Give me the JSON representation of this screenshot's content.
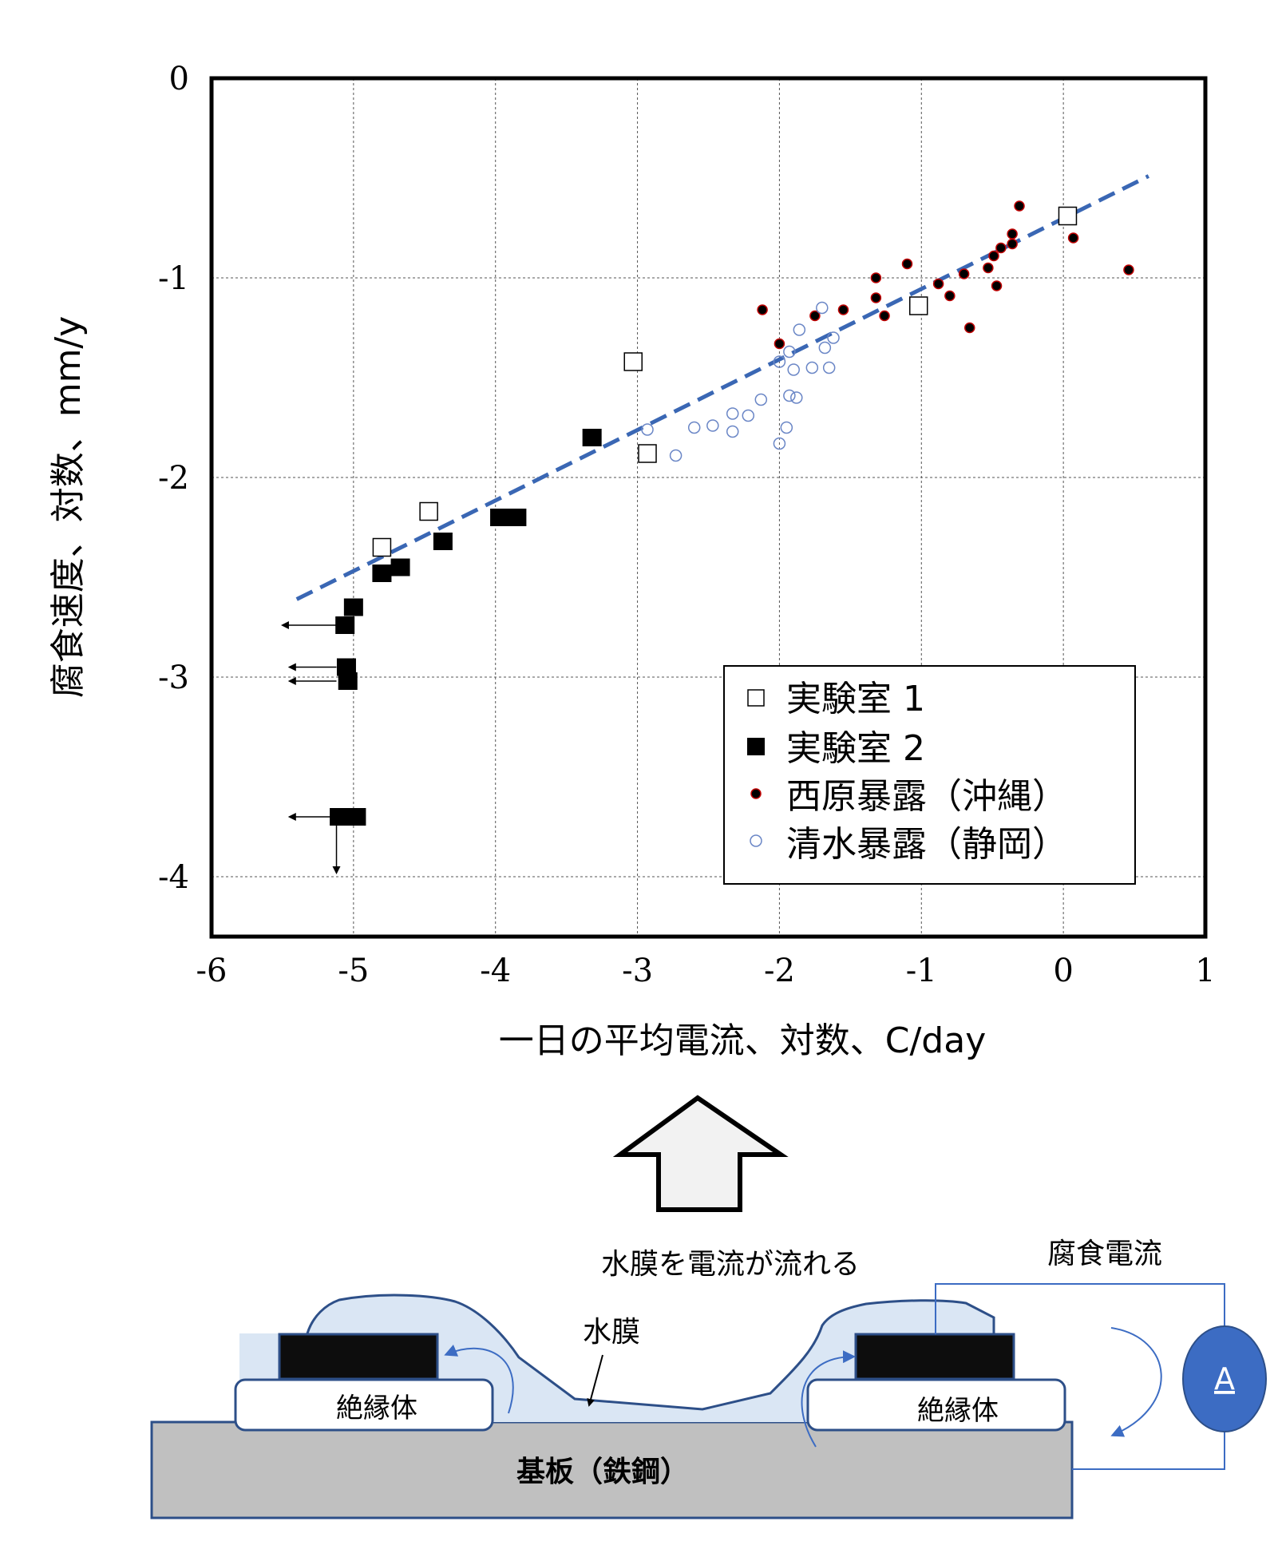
{
  "chart_data": {
    "type": "scatter",
    "xlabel": "一日の平均電流、対数、C/day",
    "ylabel": "腐食速度、対数、mm/y",
    "xlim": [
      -6,
      1
    ],
    "ylim": [
      -4.3,
      0
    ],
    "xticks": [
      "-6",
      "-5",
      "-4",
      "-3",
      "-2",
      "-1",
      "0",
      "1"
    ],
    "yticks": [
      "0",
      "-1",
      "-2",
      "-3",
      "-4"
    ],
    "grid": true,
    "legend_position": "lower-right",
    "trendline": {
      "x": [
        -5.4,
        0.6
      ],
      "y": [
        -2.61,
        -0.49
      ],
      "color": "#3a67b4"
    },
    "series": [
      {
        "name": "実験室 1",
        "marker": "open-square",
        "x": [
          0.03,
          -1.02,
          -3.03,
          -2.93,
          -4.47,
          -4.8
        ],
        "y": [
          -0.69,
          -1.14,
          -1.42,
          -1.88,
          -2.17,
          -2.35
        ]
      },
      {
        "name": "実験室 2",
        "marker": "filled-square",
        "x": [
          -3.32,
          -3.97,
          -3.85,
          -4.37,
          -4.67,
          -4.8,
          -5.0,
          -5.06,
          -5.05,
          -5.04,
          -5.1,
          -4.98
        ],
        "y": [
          -1.8,
          -2.2,
          -2.2,
          -2.32,
          -2.45,
          -2.48,
          -2.65,
          -2.74,
          -2.95,
          -3.02,
          -3.7,
          -3.7
        ]
      },
      {
        "name": "西原暴露（沖縄）",
        "marker": "filled-circle",
        "x": [
          -0.31,
          -0.36,
          -0.44,
          -0.49,
          -0.53,
          -0.36,
          0.07,
          -0.7,
          -0.47,
          -0.8,
          -0.88,
          -1.1,
          -1.32,
          -1.32,
          -1.26,
          -1.55,
          -1.75,
          -2.12,
          -2.0,
          -0.66,
          0.46
        ],
        "y": [
          -0.64,
          -0.78,
          -0.85,
          -0.89,
          -0.95,
          -0.83,
          -0.8,
          -0.98,
          -1.04,
          -1.09,
          -1.03,
          -0.93,
          -1.0,
          -1.1,
          -1.19,
          -1.16,
          -1.19,
          -1.16,
          -1.33,
          -1.25,
          -0.96
        ]
      },
      {
        "name": "清水暴露（静岡）",
        "marker": "open-circle",
        "x": [
          -1.7,
          -1.86,
          -1.62,
          -1.68,
          -1.65,
          -1.77,
          -2.0,
          -1.93,
          -1.9,
          -2.13,
          -1.93,
          -1.88,
          -2.22,
          -2.33,
          -2.47,
          -2.6,
          -2.33,
          -2.0,
          -1.95,
          -2.73,
          -2.93
        ],
        "y": [
          -1.15,
          -1.26,
          -1.3,
          -1.35,
          -1.45,
          -1.45,
          -1.42,
          -1.37,
          -1.46,
          -1.61,
          -1.59,
          -1.6,
          -1.69,
          -1.68,
          -1.74,
          -1.75,
          -1.77,
          -1.83,
          -1.75,
          -1.89,
          -1.76
        ]
      }
    ],
    "arrows": [
      {
        "from": [
          -5.12,
          -2.74
        ],
        "to": [
          -5.5,
          -2.74
        ]
      },
      {
        "from": [
          -5.12,
          -2.95
        ],
        "to": [
          -5.45,
          -2.95
        ]
      },
      {
        "from": [
          -5.12,
          -3.02
        ],
        "to": [
          -5.45,
          -3.02
        ]
      },
      {
        "from": [
          -5.15,
          -3.7
        ],
        "to": [
          -5.45,
          -3.7
        ]
      },
      {
        "from": [
          -5.12,
          -3.72
        ],
        "to": [
          -5.12,
          -3.98
        ]
      }
    ]
  },
  "diagram": {
    "up_arrow_label": "水膜を電流が流れる",
    "water_film_label": "水膜",
    "corrosion_current_label": "腐食電流",
    "ammeter_label": "A",
    "insulator_left_label": "絶縁体",
    "insulator_right_label": "絶縁体",
    "substrate_label": "基板（鉄鋼）",
    "colors": {
      "water": "#dae6f4",
      "water_edge": "#2d4f88",
      "electrode": "#0d0d0d",
      "substrate": "#c0c0c0",
      "ammeter": "#3c6cc3",
      "wire": "#3c6cc3"
    }
  }
}
